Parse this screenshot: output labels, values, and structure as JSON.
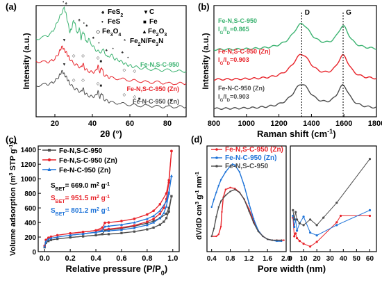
{
  "colors": {
    "green": "#3cb371",
    "red": "#e8232a",
    "gray": "#4d4d4d",
    "blue": "#1e73d8",
    "black": "#111111"
  },
  "chart_data": [
    {
      "panel": "(a)",
      "type": "line",
      "xlabel": "2θ (°)",
      "ylabel": "Intensity (a.u.)",
      "xlim": [
        10,
        90
      ],
      "xticks": [
        20,
        40,
        60,
        80
      ],
      "series": [
        {
          "name": "Fe-N,S-C-950",
          "x": [
            10,
            15,
            18,
            20,
            22,
            23.5,
            25,
            26,
            27,
            28,
            29,
            30,
            31,
            32,
            33,
            34,
            35,
            36,
            37,
            38,
            40,
            42,
            44,
            46,
            48,
            50,
            52,
            54,
            56,
            58,
            60,
            62,
            66,
            70,
            75,
            80,
            85,
            90
          ],
          "y": [
            0.7,
            0.72,
            0.75,
            0.8,
            0.88,
            0.93,
            0.98,
            0.92,
            0.84,
            0.76,
            0.8,
            0.87,
            0.82,
            0.74,
            0.8,
            0.7,
            0.77,
            0.72,
            0.66,
            0.7,
            0.64,
            0.6,
            0.58,
            0.6,
            0.53,
            0.56,
            0.52,
            0.51,
            0.49,
            0.47,
            0.46,
            0.45,
            0.44,
            0.43,
            0.42,
            0.42,
            0.41,
            0.41
          ]
        },
        {
          "name": "Fe-N,S-C-950 (Zn)",
          "x": [
            10,
            15,
            18,
            20,
            22,
            23,
            24,
            25,
            26,
            27,
            28,
            30,
            32,
            34,
            35,
            36,
            38,
            40,
            42,
            43,
            44,
            45,
            46,
            48,
            50,
            55,
            60,
            65,
            70,
            75,
            80,
            85,
            90
          ],
          "y": [
            0.5,
            0.49,
            0.5,
            0.52,
            0.57,
            0.61,
            0.63,
            0.6,
            0.58,
            0.55,
            0.52,
            0.48,
            0.46,
            0.44,
            0.48,
            0.43,
            0.41,
            0.4,
            0.41,
            0.46,
            0.4,
            0.45,
            0.38,
            0.36,
            0.35,
            0.34,
            0.33,
            0.32,
            0.31,
            0.31,
            0.3,
            0.3,
            0.3
          ]
        },
        {
          "name": "Fe-N-C-950 (Zn)",
          "x": [
            10,
            15,
            18,
            20,
            22,
            23,
            24,
            25,
            26,
            27,
            28,
            30,
            32,
            34,
            35,
            36,
            38,
            40,
            42,
            43,
            44,
            45,
            46,
            48,
            50,
            55,
            60,
            65,
            70,
            75,
            80,
            85,
            90
          ],
          "y": [
            0.28,
            0.29,
            0.3,
            0.32,
            0.36,
            0.39,
            0.41,
            0.38,
            0.36,
            0.33,
            0.3,
            0.26,
            0.24,
            0.22,
            0.26,
            0.21,
            0.19,
            0.18,
            0.19,
            0.23,
            0.17,
            0.22,
            0.16,
            0.14,
            0.13,
            0.12,
            0.11,
            0.1,
            0.1,
            0.09,
            0.09,
            0.09,
            0.09
          ]
        }
      ],
      "legend": {
        "items": [
          {
            "symbol": "♠",
            "label": "FeS2"
          },
          {
            "symbol": "▼",
            "label": "C"
          },
          {
            "symbol": "•",
            "label": "FeS"
          },
          {
            "symbol": "■",
            "label": "Fe"
          },
          {
            "symbol": "◇",
            "label": "Fe3O4"
          },
          {
            "symbol": "▲",
            "label": "Fe2O3"
          },
          {
            "symbol": "*",
            "label": "Fe2N/Fe3N"
          }
        ]
      }
    },
    {
      "panel": "(b)",
      "type": "line",
      "xlabel": "Raman shift (cm⁻¹)",
      "ylabel": "Intensity (a.u.)",
      "xlim": [
        800,
        1800
      ],
      "xticks": [
        800,
        1000,
        1200,
        1400,
        1600,
        1800
      ],
      "peak_labels": [
        {
          "label": "D",
          "x": 1340
        },
        {
          "label": "G",
          "x": 1595
        }
      ],
      "series": [
        {
          "name": "Fe-N,S-C-950",
          "ratio": "IG/ID=0.865",
          "peaks": [
            {
              "x": 1340,
              "h": 0.92
            },
            {
              "x": 1595,
              "h": 0.8
            }
          ]
        },
        {
          "name": "Fe-N,S-C-950 (Zn)",
          "ratio": "IG/ID=0.903",
          "peaks": [
            {
              "x": 1340,
              "h": 0.9
            },
            {
              "x": 1595,
              "h": 0.82
            }
          ]
        },
        {
          "name": "Fe-N-C-950 (Zn)",
          "ratio": "IG/ID=0.903",
          "peaks": [
            {
              "x": 1340,
              "h": 0.88
            },
            {
              "x": 1595,
              "h": 0.8
            }
          ]
        }
      ]
    },
    {
      "panel": "(c)",
      "type": "line",
      "xlabel": "Relative pressure (P/P0)",
      "ylabel": "Volume adsorption (m3 STP g⁻¹)",
      "xlim": [
        -0.05,
        1.05
      ],
      "ylim": [
        0,
        1450
      ],
      "xticks": [
        0.0,
        0.2,
        0.4,
        0.6,
        0.8,
        1.0
      ],
      "yticks": [
        0,
        200,
        400,
        600,
        800,
        1000,
        1200,
        1400
      ],
      "series": [
        {
          "name": "Fe-N,S-C-950",
          "sbet": "669.0 m2 g⁻¹",
          "adsorption": {
            "x": [
              0.0,
              0.01,
              0.03,
              0.05,
              0.1,
              0.2,
              0.3,
              0.4,
              0.5,
              0.6,
              0.7,
              0.8,
              0.85,
              0.9,
              0.93,
              0.95,
              0.97,
              0.99
            ],
            "y": [
              60,
              120,
              145,
              160,
              175,
              195,
              210,
              225,
              240,
              255,
              275,
              305,
              330,
              370,
              410,
              460,
              550,
              760
            ]
          },
          "desorption": {
            "x": [
              0.99,
              0.97,
              0.95,
              0.9,
              0.85,
              0.8,
              0.7,
              0.6,
              0.5,
              0.47,
              0.45,
              0.4,
              0.3,
              0.2
            ],
            "y": [
              760,
              600,
              520,
              460,
              420,
              390,
              350,
              320,
              300,
              290,
              240,
              225,
              210,
              195
            ]
          }
        },
        {
          "name": "Fe-N,S-C-950 (Zn)",
          "sbet": "951.5 m2 g⁻¹",
          "adsorption": {
            "x": [
              0.0,
              0.01,
              0.03,
              0.05,
              0.1,
              0.2,
              0.3,
              0.4,
              0.5,
              0.6,
              0.7,
              0.8,
              0.85,
              0.9,
              0.93,
              0.95,
              0.97,
              0.99
            ],
            "y": [
              80,
              160,
              190,
              205,
              225,
              250,
              270,
              290,
              310,
              330,
              360,
              410,
              450,
              520,
              600,
              720,
              950,
              1380
            ]
          },
          "desorption": {
            "x": [
              0.99,
              0.97,
              0.95,
              0.9,
              0.85,
              0.8,
              0.7,
              0.6,
              0.5,
              0.47,
              0.45,
              0.4,
              0.3,
              0.2
            ],
            "y": [
              1380,
              980,
              800,
              650,
              560,
              510,
              450,
              420,
              400,
              395,
              330,
              290,
              270,
              250
            ]
          }
        },
        {
          "name": "Fe-N-C-950 (Zn)",
          "sbet": "801.2 m2 g⁻¹",
          "adsorption": {
            "x": [
              0.0,
              0.01,
              0.03,
              0.05,
              0.1,
              0.2,
              0.3,
              0.4,
              0.5,
              0.6,
              0.7,
              0.8,
              0.85,
              0.9,
              0.93,
              0.95,
              0.97,
              0.99
            ],
            "y": [
              70,
              140,
              170,
              185,
              200,
              225,
              245,
              265,
              285,
              300,
              325,
              365,
              400,
              460,
              530,
              620,
              800,
              1040
            ]
          },
          "desorption": {
            "x": [
              0.99,
              0.97,
              0.95,
              0.9,
              0.85,
              0.8,
              0.7,
              0.6,
              0.5,
              0.47,
              0.45,
              0.4,
              0.3,
              0.2
            ],
            "y": [
              1040,
              820,
              690,
              560,
              490,
              450,
              400,
              370,
              350,
              345,
              290,
              265,
              245,
              225
            ]
          }
        }
      ]
    },
    {
      "panel": "(d)",
      "type": "line",
      "xlabel": "Pore width (nm)",
      "ylabel": "dV/dD cm3 g⁻¹ nm⁻¹",
      "left_xlim": [
        0.3,
        2.0
      ],
      "left_xticks": [
        0.4,
        0.8,
        1.2,
        1.6,
        2.0
      ],
      "right_xlim": [
        0,
        65
      ],
      "right_xticks": [
        0,
        10,
        20,
        30,
        40,
        50,
        60
      ],
      "series": [
        {
          "name": "Fe-N,S-C-950 (Zn)",
          "left": {
            "x": [
              0.4,
              0.5,
              0.55,
              0.6,
              0.62,
              0.65,
              0.7,
              0.8,
              0.9,
              1.0,
              1.1,
              1.2,
              1.3,
              1.4,
              1.5,
              1.6,
              1.7,
              1.8,
              1.9,
              1.95
            ],
            "y": [
              0.1,
              0.1,
              0.12,
              0.2,
              0.35,
              0.5,
              0.58,
              0.6,
              0.59,
              0.55,
              0.48,
              0.38,
              0.26,
              0.16,
              0.1,
              0.07,
              0.06,
              0.06,
              0.06,
              0.06
            ]
          },
          "right": {
            "x": [
              2,
              3,
              4,
              5,
              7,
              10,
              15,
              20,
              35,
              38,
              60
            ],
            "y": [
              0.32,
              0.12,
              0.15,
              0.1,
              0.07,
              0.04,
              0.01,
              0.06,
              0.27,
              0.34,
              0.34
            ]
          }
        },
        {
          "name": "Fe-N-C-950 (Zn)",
          "left": {
            "x": [
              0.4,
              0.45,
              0.5,
              0.55,
              0.6,
              0.7,
              0.8,
              0.85,
              0.9,
              1.0,
              1.1,
              1.2,
              1.3,
              1.4,
              1.5,
              1.6,
              1.7,
              1.8,
              1.9
            ],
            "y": [
              0.4,
              0.48,
              0.55,
              0.62,
              0.68,
              0.76,
              0.82,
              0.84,
              0.83,
              0.76,
              0.62,
              0.44,
              0.28,
              0.16,
              0.1,
              0.07,
              0.06,
              0.05,
              0.05
            ]
          },
          "right": {
            "x": [
              2,
              3,
              4,
              5,
              7,
              10,
              15,
              20,
              35,
              60
            ],
            "y": [
              0.34,
              0.22,
              0.3,
              0.18,
              0.26,
              0.33,
              0.16,
              0.13,
              0.24,
              0.4
            ]
          }
        },
        {
          "name": "Fe-N,S-C-950",
          "left": {
            "x": [
              0.4,
              0.45,
              0.5,
              0.55,
              0.6,
              0.7,
              0.8,
              0.9,
              1.0,
              1.1,
              1.2,
              1.3,
              1.4,
              1.5,
              1.6,
              1.7,
              1.8,
              1.9
            ],
            "y": [
              0.1,
              0.18,
              0.3,
              0.4,
              0.46,
              0.52,
              0.56,
              0.58,
              0.55,
              0.48,
              0.36,
              0.24,
              0.15,
              0.1,
              0.07,
              0.06,
              0.06,
              0.06
            ]
          },
          "right": {
            "x": [
              2,
              3,
              4,
              5,
              7,
              10,
              15,
              20,
              25,
              35,
              60
            ],
            "y": [
              0.4,
              0.3,
              0.38,
              0.3,
              0.26,
              0.24,
              0.3,
              0.24,
              0.32,
              0.48,
              0.95
            ]
          }
        }
      ]
    }
  ]
}
